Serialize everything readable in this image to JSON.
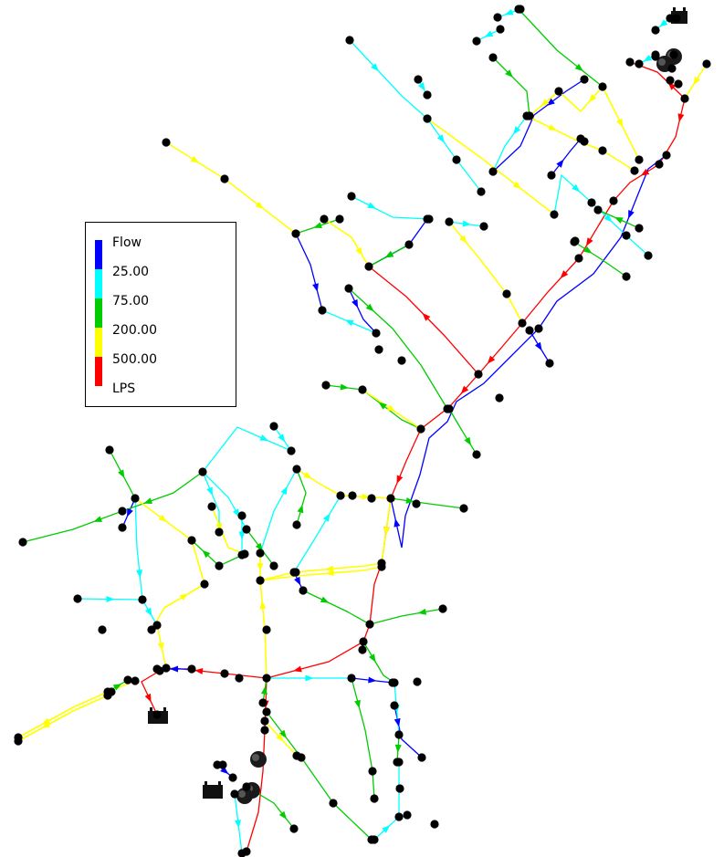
{
  "legend": {
    "title": "Flow",
    "unit": "LPS",
    "thresholds": [
      "25.00",
      "75.00",
      "200.00",
      "500.00"
    ],
    "classes": [
      {
        "color": "#0000ff"
      },
      {
        "color": "#00ffff"
      },
      {
        "color": "#00cc00"
      },
      {
        "color": "#ffff00"
      },
      {
        "color": "#ff0000"
      }
    ]
  },
  "colors": {
    "node": "#000000",
    "background": "#ffffff"
  }
}
